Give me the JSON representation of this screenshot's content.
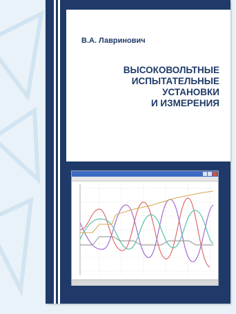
{
  "book": {
    "author": "В.А. Лавринович",
    "title_lines": [
      "ВЫСОКОВОЛЬТНЫЕ",
      "ИСПЫТАТЕЛЬНЫЕ",
      "УСТАНОВКИ",
      "И ИЗМЕРЕНИЯ"
    ]
  },
  "colors": {
    "cover_blue": "#1f3a68",
    "panel_white": "#ffffff",
    "background": "#e9f2f8"
  },
  "oscillogram": {
    "icon": "oscilloscope-window",
    "trace_colors": [
      "#e06a6a",
      "#a06bd0",
      "#5bc0a9",
      "#d6a84b",
      "#8a8a8a"
    ]
  }
}
